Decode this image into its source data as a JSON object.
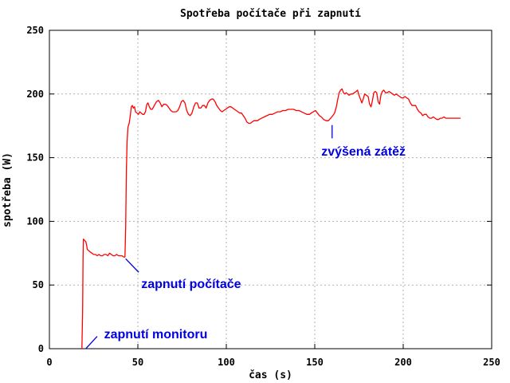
{
  "chart_data": {
    "type": "line",
    "title": "Spotřeba počítače při zapnutí",
    "xlabel": "čas (s)",
    "ylabel": "spotřeba (W)",
    "xlim": [
      0,
      250
    ],
    "ylim": [
      0,
      250
    ],
    "xticks": [
      0,
      50,
      100,
      150,
      200,
      250
    ],
    "yticks": [
      0,
      50,
      100,
      150,
      200,
      250
    ],
    "grid": true,
    "grid_color": "#b0b0b0",
    "frame_color": "#000000",
    "line_color": "#ff0000",
    "annotation_color": "#0000e0",
    "series": [
      {
        "name": "spotřeba počítače",
        "points": [
          [
            18.4,
            0
          ],
          [
            18.8,
            30
          ],
          [
            19.0,
            70
          ],
          [
            19.2,
            86
          ],
          [
            19.9,
            85
          ],
          [
            20.6,
            84
          ],
          [
            21.1,
            81
          ],
          [
            21.4,
            78
          ],
          [
            22.2,
            77
          ],
          [
            23,
            76
          ],
          [
            24,
            75
          ],
          [
            25,
            74
          ],
          [
            26,
            74
          ],
          [
            27,
            73
          ],
          [
            28,
            74
          ],
          [
            29,
            73
          ],
          [
            30,
            73
          ],
          [
            31,
            74
          ],
          [
            32,
            74
          ],
          [
            33,
            73
          ],
          [
            34,
            75
          ],
          [
            35,
            74
          ],
          [
            36,
            73
          ],
          [
            37,
            73
          ],
          [
            38,
            74
          ],
          [
            39,
            73
          ],
          [
            40,
            73
          ],
          [
            41,
            73
          ],
          [
            42,
            72
          ],
          [
            42.7,
            72
          ],
          [
            43.1,
            95
          ],
          [
            43.5,
            140
          ],
          [
            43.9,
            163
          ],
          [
            44.4,
            174
          ],
          [
            45.1,
            177
          ],
          [
            45.7,
            183
          ],
          [
            46.3,
            190
          ],
          [
            46.9,
            191
          ],
          [
            47.5,
            189
          ],
          [
            48.1,
            190
          ],
          [
            48.7,
            186
          ],
          [
            49.5,
            185
          ],
          [
            50.3,
            184
          ],
          [
            51.1,
            186
          ],
          [
            51.9,
            185
          ],
          [
            52.7,
            184
          ],
          [
            53.5,
            184
          ],
          [
            54.3,
            186
          ],
          [
            55.1,
            192
          ],
          [
            55.7,
            193
          ],
          [
            56.5,
            190
          ],
          [
            57.3,
            188
          ],
          [
            58.1,
            188
          ],
          [
            58.9,
            190
          ],
          [
            59.7,
            192
          ],
          [
            60.6,
            194
          ],
          [
            61.6,
            195
          ],
          [
            62.6,
            193
          ],
          [
            63.6,
            190
          ],
          [
            64.6,
            192
          ],
          [
            65.6,
            192
          ],
          [
            66.6,
            191
          ],
          [
            67.6,
            189
          ],
          [
            68.6,
            187
          ],
          [
            69.6,
            186
          ],
          [
            70.6,
            186
          ],
          [
            71.6,
            186
          ],
          [
            72.6,
            187
          ],
          [
            73.6,
            190
          ],
          [
            74.6,
            194
          ],
          [
            75.6,
            195
          ],
          [
            76.6,
            193
          ],
          [
            77.6,
            187
          ],
          [
            78.6,
            184
          ],
          [
            79.6,
            183
          ],
          [
            80.6,
            185
          ],
          [
            81.6,
            190
          ],
          [
            82.6,
            193
          ],
          [
            83.6,
            193
          ],
          [
            84.6,
            189
          ],
          [
            85.6,
            189
          ],
          [
            86.6,
            191
          ],
          [
            87.6,
            191
          ],
          [
            88.6,
            189
          ],
          [
            89.6,
            193
          ],
          [
            90.6,
            195
          ],
          [
            91.6,
            196
          ],
          [
            92.6,
            196
          ],
          [
            93.6,
            194
          ],
          [
            94.6,
            191
          ],
          [
            95.6,
            189
          ],
          [
            96.6,
            187
          ],
          [
            97.6,
            186
          ],
          [
            98.6,
            187
          ],
          [
            99.6,
            188
          ],
          [
            100.6,
            189
          ],
          [
            101.6,
            190
          ],
          [
            102.6,
            190
          ],
          [
            103.6,
            189
          ],
          [
            104.6,
            188
          ],
          [
            105.6,
            187
          ],
          [
            106.6,
            186
          ],
          [
            107.6,
            185
          ],
          [
            108.6,
            185
          ],
          [
            109.6,
            183
          ],
          [
            110.6,
            181
          ],
          [
            111.6,
            178
          ],
          [
            112.6,
            177
          ],
          [
            113.6,
            177
          ],
          [
            114.6,
            178
          ],
          [
            115.6,
            179
          ],
          [
            116.6,
            179
          ],
          [
            117.6,
            179
          ],
          [
            118.6,
            180
          ],
          [
            120,
            181
          ],
          [
            121.5,
            182
          ],
          [
            123,
            183
          ],
          [
            124.5,
            184
          ],
          [
            126,
            184
          ],
          [
            127.5,
            185
          ],
          [
            129,
            186
          ],
          [
            130.5,
            186
          ],
          [
            132,
            187
          ],
          [
            133.5,
            187
          ],
          [
            135,
            188
          ],
          [
            136.5,
            188
          ],
          [
            138,
            188
          ],
          [
            139.5,
            187
          ],
          [
            141,
            187
          ],
          [
            142.5,
            186
          ],
          [
            144,
            185
          ],
          [
            145.5,
            184
          ],
          [
            147,
            184
          ],
          [
            148,
            185
          ],
          [
            149.2,
            186
          ],
          [
            150.4,
            187
          ],
          [
            151.5,
            185
          ],
          [
            152.6,
            183
          ],
          [
            153.7,
            182
          ],
          [
            155,
            180
          ],
          [
            156.4,
            179
          ],
          [
            157.7,
            179
          ],
          [
            159,
            181
          ],
          [
            160.2,
            183
          ],
          [
            161.2,
            185
          ],
          [
            162.2,
            190
          ],
          [
            163,
            196
          ],
          [
            163.8,
            201
          ],
          [
            164.6,
            203
          ],
          [
            165.4,
            204
          ],
          [
            166.2,
            201
          ],
          [
            167,
            200
          ],
          [
            167.8,
            201
          ],
          [
            168.6,
            200
          ],
          [
            169.4,
            199
          ],
          [
            170.4,
            200
          ],
          [
            171.4,
            200
          ],
          [
            172.4,
            201
          ],
          [
            173.4,
            202
          ],
          [
            174.2,
            203
          ],
          [
            175,
            199
          ],
          [
            175.8,
            196
          ],
          [
            176.6,
            193
          ],
          [
            177.4,
            196
          ],
          [
            178.2,
            200
          ],
          [
            179.2,
            199
          ],
          [
            180.2,
            198
          ],
          [
            181,
            192
          ],
          [
            181.8,
            190
          ],
          [
            182.6,
            195
          ],
          [
            183.4,
            201
          ],
          [
            184.2,
            202
          ],
          [
            185,
            201
          ],
          [
            185.8,
            194
          ],
          [
            186.6,
            192
          ],
          [
            187.4,
            199
          ],
          [
            188.2,
            202
          ],
          [
            189,
            203
          ],
          [
            190,
            201
          ],
          [
            191,
            201
          ],
          [
            192,
            202
          ],
          [
            193,
            201
          ],
          [
            194,
            200
          ],
          [
            195,
            199
          ],
          [
            196,
            200
          ],
          [
            197,
            199
          ],
          [
            198,
            198
          ],
          [
            199,
            197
          ],
          [
            200,
            197
          ],
          [
            201,
            198
          ],
          [
            202,
            197
          ],
          [
            203,
            196
          ],
          [
            204,
            193
          ],
          [
            205,
            191
          ],
          [
            206,
            191
          ],
          [
            207,
            191
          ],
          [
            208,
            188
          ],
          [
            209,
            186
          ],
          [
            210,
            185
          ],
          [
            211,
            183
          ],
          [
            212,
            184
          ],
          [
            213,
            184
          ],
          [
            214,
            182
          ],
          [
            215,
            181
          ],
          [
            216,
            181
          ],
          [
            217,
            182
          ],
          [
            218,
            181
          ],
          [
            219,
            180
          ],
          [
            220,
            180
          ],
          [
            221,
            181
          ],
          [
            222,
            181
          ],
          [
            223,
            182
          ],
          [
            224,
            181
          ],
          [
            225.5,
            181
          ],
          [
            227,
            181
          ],
          [
            228.5,
            181
          ],
          [
            230,
            181
          ],
          [
            231.2,
            181
          ],
          [
            232.4,
            181
          ]
        ]
      }
    ],
    "annotations": [
      {
        "text": "zapnutí monitoru",
        "x": 30.9,
        "y": 8.2,
        "anchor": "start",
        "line": [
          [
            20.7,
            0.2
          ],
          [
            27.0,
            9.7
          ]
        ]
      },
      {
        "text": "zapnutí počítače",
        "x": 51.9,
        "y": 47.6,
        "anchor": "start",
        "line": [
          [
            43.1,
            70.6
          ],
          [
            50.5,
            60.0
          ]
        ]
      },
      {
        "text": "zvýšená zátěž",
        "x": 153.7,
        "y": 151.6,
        "anchor": "start",
        "line": [
          [
            159.8,
            175.6
          ],
          [
            159.8,
            165.2
          ]
        ]
      }
    ]
  }
}
